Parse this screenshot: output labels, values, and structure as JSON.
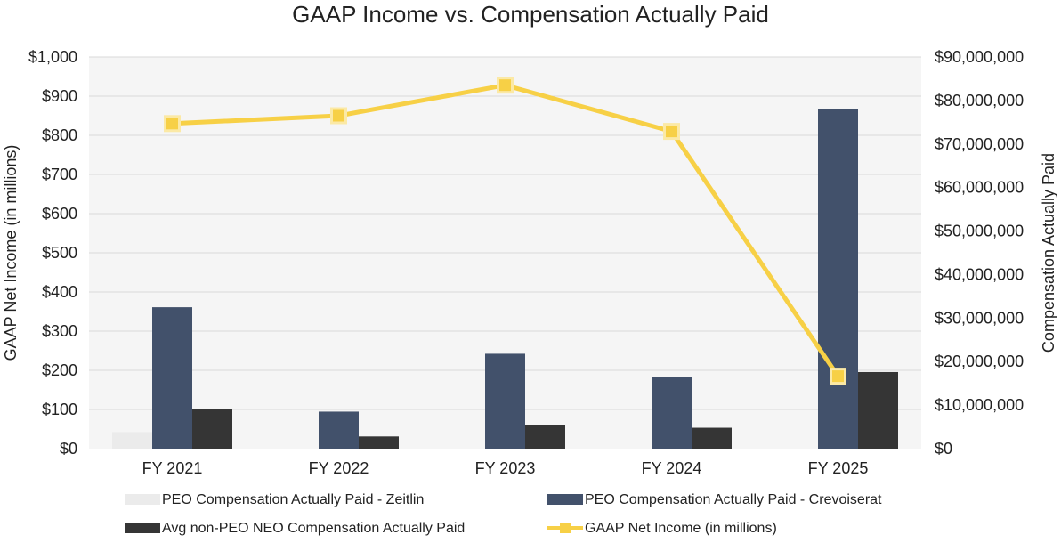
{
  "chart_data": {
    "type": "bar+line",
    "title": "GAAP Income vs. Compensation Actually Paid",
    "categories": [
      "FY 2021",
      "FY 2022",
      "FY 2023",
      "FY 2024",
      "FY 2025"
    ],
    "y_left": {
      "label": "GAAP Net Income (in millions)",
      "ylim": [
        0,
        1000
      ],
      "ticks": [
        0,
        100,
        200,
        300,
        400,
        500,
        600,
        700,
        800,
        900,
        1000
      ],
      "tick_labels": [
        "$0",
        "$100",
        "$200",
        "$300",
        "$400",
        "$500",
        "$600",
        "$700",
        "$800",
        "$900",
        "$1,000"
      ]
    },
    "y_right": {
      "label": "Compensation Actually Paid",
      "ylim": [
        0,
        90000000
      ],
      "ticks": [
        0,
        10000000,
        20000000,
        30000000,
        40000000,
        50000000,
        60000000,
        70000000,
        80000000,
        90000000
      ],
      "tick_labels": [
        "$0",
        "$10,000,000",
        "$20,000,000",
        "$30,000,000",
        "$40,000,000",
        "$50,000,000",
        "$60,000,000",
        "$70,000,000",
        "$80,000,000",
        "$90,000,000"
      ]
    },
    "series": [
      {
        "name": "PEO Compensation Actually Paid - Zeitlin",
        "type": "bar",
        "axis": "right",
        "color": "#ebebeb",
        "values": [
          3800000,
          0,
          0,
          0,
          0
        ]
      },
      {
        "name": "PEO Compensation Actually Paid - Crevoiserat",
        "type": "bar",
        "axis": "right",
        "color": "#42516b",
        "values": [
          32500000,
          8500000,
          21800000,
          16500000,
          78000000
        ]
      },
      {
        "name": "Avg non-PEO NEO Compensation Actually Paid",
        "type": "bar",
        "axis": "right",
        "color": "#353535",
        "values": [
          9000000,
          2800000,
          5500000,
          4800000,
          17600000
        ]
      },
      {
        "name": "GAAP Net Income (in millions)",
        "type": "line",
        "axis": "left",
        "color": "#f7d046",
        "values": [
          830,
          850,
          928,
          810,
          185
        ]
      }
    ],
    "legend": "bottom"
  }
}
